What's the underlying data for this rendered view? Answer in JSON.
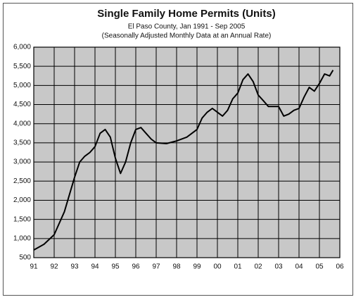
{
  "chart_data": {
    "type": "line",
    "title": "Single Family Home Permits (Units)",
    "subtitle": [
      "El Paso County, Jan 1991 - Sep 2005",
      "(Seasonally Adjusted Monthly Data at an Annual Rate)"
    ],
    "x": [
      1991.0,
      1991.5,
      1992.0,
      1992.5,
      1993.0,
      1993.25,
      1993.5,
      1993.75,
      1994.0,
      1994.25,
      1994.5,
      1994.75,
      1995.0,
      1995.25,
      1995.5,
      1995.75,
      1996.0,
      1996.25,
      1996.5,
      1996.75,
      1997.0,
      1997.5,
      1998.0,
      1998.5,
      1999.0,
      1999.25,
      1999.5,
      1999.75,
      2000.0,
      2000.25,
      2000.5,
      2000.75,
      2001.0,
      2001.25,
      2001.5,
      2001.75,
      2002.0,
      2002.25,
      2002.5,
      2002.75,
      2003.0,
      2003.25,
      2003.5,
      2003.75,
      2004.0,
      2004.25,
      2004.5,
      2004.75,
      2005.0,
      2005.25,
      2005.5,
      2005.67
    ],
    "series": [
      {
        "name": "Single Family Home Permits",
        "color": "#000000",
        "values": [
          700,
          850,
          1100,
          1700,
          2600,
          3000,
          3150,
          3250,
          3400,
          3750,
          3850,
          3650,
          3100,
          2700,
          3000,
          3500,
          3850,
          3900,
          3750,
          3600,
          3500,
          3480,
          3550,
          3650,
          3850,
          4150,
          4300,
          4400,
          4300,
          4200,
          4350,
          4650,
          4800,
          5150,
          5300,
          5100,
          4750,
          4600,
          4450,
          4450,
          4450,
          4200,
          4250,
          4350,
          4400,
          4700,
          4950,
          4850,
          5050,
          5300,
          5250,
          5400
        ]
      }
    ],
    "xlim": [
      1991,
      2006
    ],
    "xticks": [
      {
        "value": 1991,
        "label": "91"
      },
      {
        "value": 1992,
        "label": "92"
      },
      {
        "value": 1993,
        "label": "93"
      },
      {
        "value": 1994,
        "label": "94"
      },
      {
        "value": 1995,
        "label": "95"
      },
      {
        "value": 1996,
        "label": "96"
      },
      {
        "value": 1997,
        "label": "97"
      },
      {
        "value": 1998,
        "label": "98"
      },
      {
        "value": 1999,
        "label": "99"
      },
      {
        "value": 2000,
        "label": "00"
      },
      {
        "value": 2001,
        "label": "01"
      },
      {
        "value": 2002,
        "label": "02"
      },
      {
        "value": 2003,
        "label": "03"
      },
      {
        "value": 2004,
        "label": "04"
      },
      {
        "value": 2005,
        "label": "05"
      },
      {
        "value": 2006,
        "label": "06"
      }
    ],
    "ylim": [
      500,
      6000
    ],
    "yticks": [
      500,
      {
        "value": 1000,
        "label": "1,000"
      },
      {
        "value": 1500,
        "label": "1,500"
      },
      {
        "value": 2000,
        "label": "2,000"
      },
      {
        "value": 2500,
        "label": "2,500"
      },
      {
        "value": 3000,
        "label": "3,000"
      },
      {
        "value": 3500,
        "label": "3,500"
      },
      {
        "value": 4000,
        "label": "4,000"
      },
      {
        "value": 4500,
        "label": "4,500"
      },
      {
        "value": 5000,
        "label": "5,000"
      },
      {
        "value": 5500,
        "label": "5,500"
      },
      {
        "value": 6000,
        "label": "6,000"
      }
    ],
    "grid": true,
    "plot_background": "#c8c8c8"
  }
}
